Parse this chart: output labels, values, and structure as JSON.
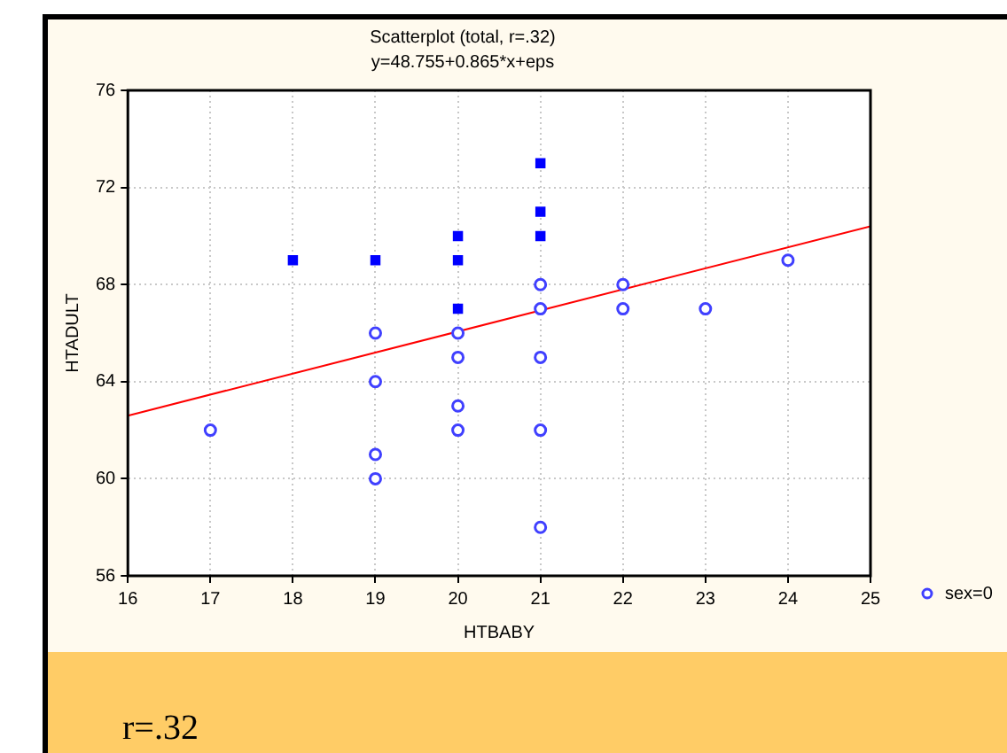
{
  "chart_data": {
    "type": "scatter",
    "title": "Scatterplot (total, r=.32)",
    "subtitle": "y=48.755+0.865*x+eps",
    "xlabel": "HTBABY",
    "ylabel": "HTADULT",
    "xlim": [
      16,
      25
    ],
    "xticks": [
      16,
      17,
      18,
      19,
      20,
      21,
      22,
      23,
      24,
      25
    ],
    "ylim": [
      56,
      76
    ],
    "yticks": [
      56,
      60,
      64,
      68,
      72,
      76
    ],
    "grid": true,
    "legend": "bottom right",
    "series": [
      {
        "name": "sex=0",
        "color": "#4040ff",
        "marker": "circle",
        "x": [
          17,
          19,
          19,
          19,
          19,
          20,
          20,
          20,
          20,
          21,
          21,
          21,
          21,
          21,
          22,
          22,
          23,
          24
        ],
        "values": [
          62,
          66,
          64,
          61,
          60,
          66,
          65,
          63,
          62,
          68,
          67,
          65,
          62,
          58,
          68,
          67,
          67,
          69
        ]
      },
      {
        "color": "#0000ff",
        "marker": "square",
        "x": [
          18,
          19,
          20,
          20,
          20,
          21,
          21,
          21
        ],
        "values": [
          69,
          69,
          70,
          69,
          67,
          73,
          71,
          70
        ]
      },
      {
        "type": "line",
        "color": "#ff0000",
        "marker": "none",
        "line_style": "solid",
        "x": [
          16,
          25
        ],
        "values": [
          62.6,
          70.4
        ]
      }
    ],
    "annotations": [
      "r=.32"
    ]
  }
}
